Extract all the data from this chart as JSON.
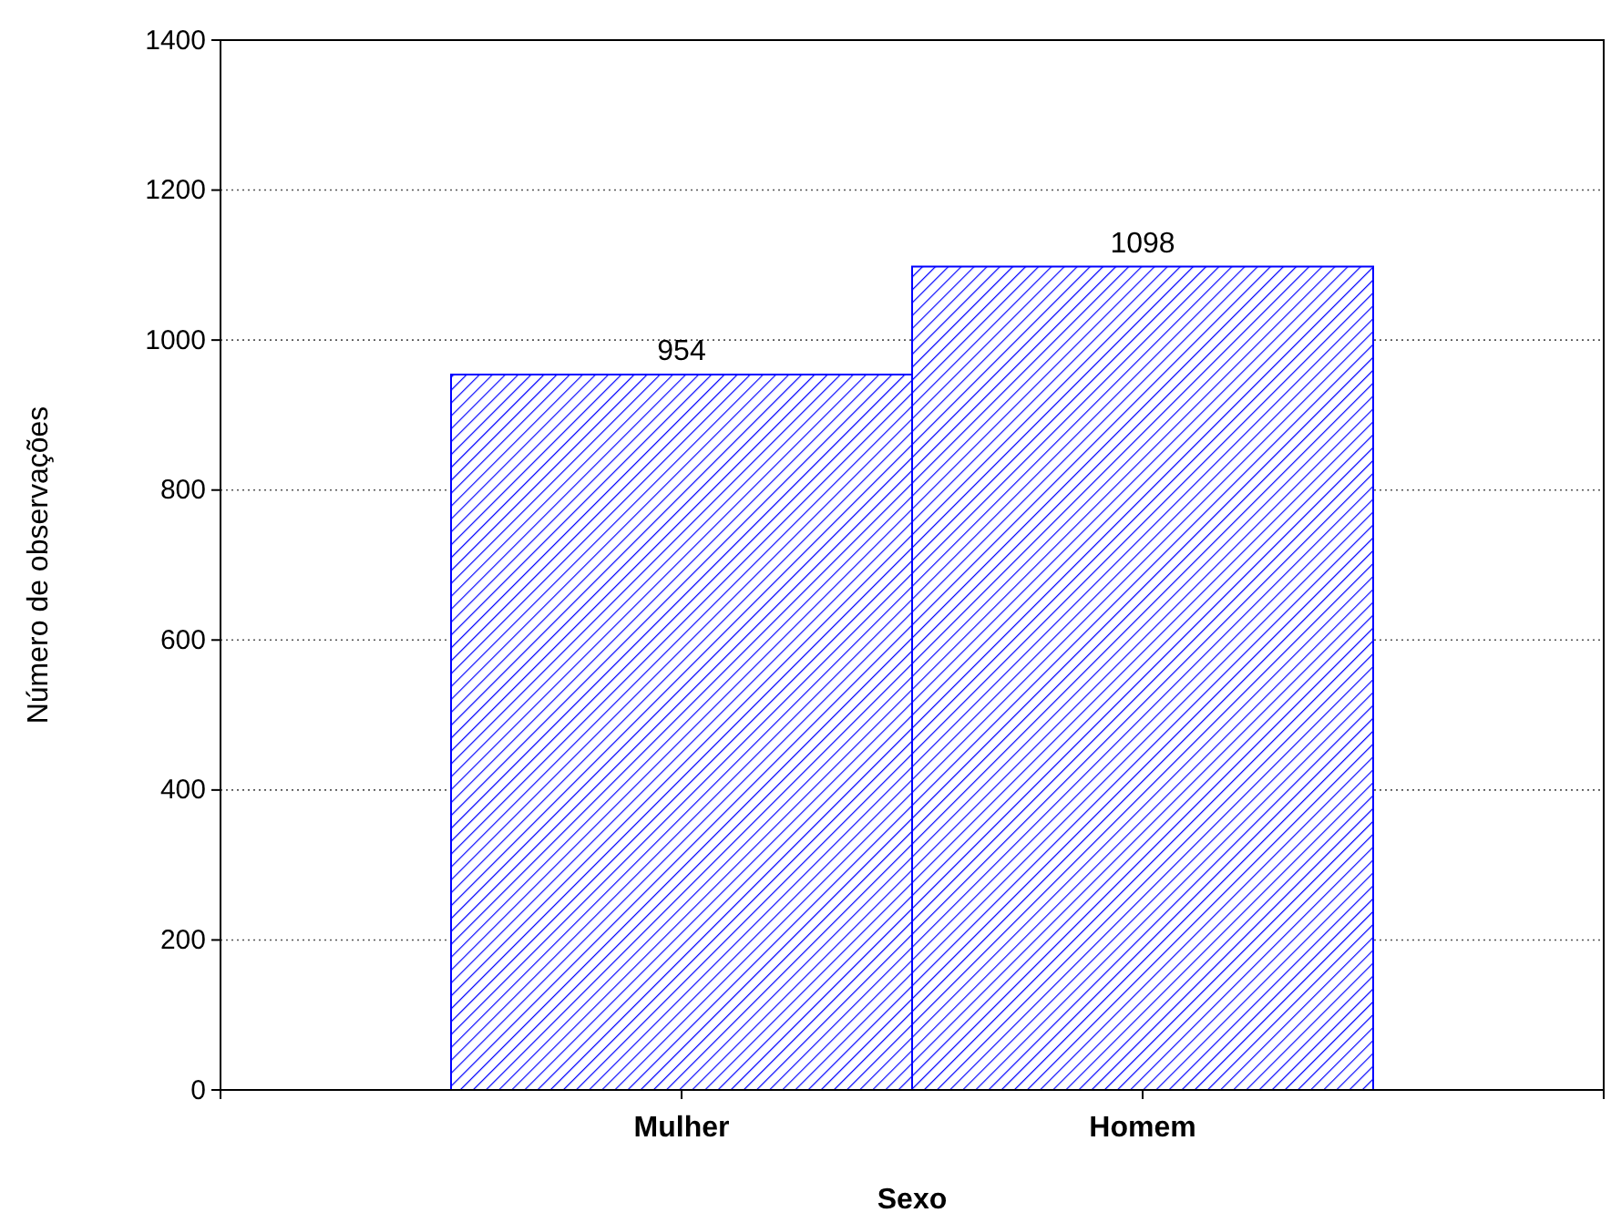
{
  "chart_data": {
    "type": "bar",
    "xlabel": "Sexo",
    "ylabel": "Número de observações",
    "categories": [
      "Mulher",
      "Homem"
    ],
    "values": [
      954,
      1098
    ],
    "color": "#0000ff",
    "ylim": [
      0,
      1400
    ],
    "yticks": [
      0,
      200,
      400,
      600,
      800,
      1000,
      1200,
      1400
    ],
    "grid": "y",
    "data_labels": true
  }
}
